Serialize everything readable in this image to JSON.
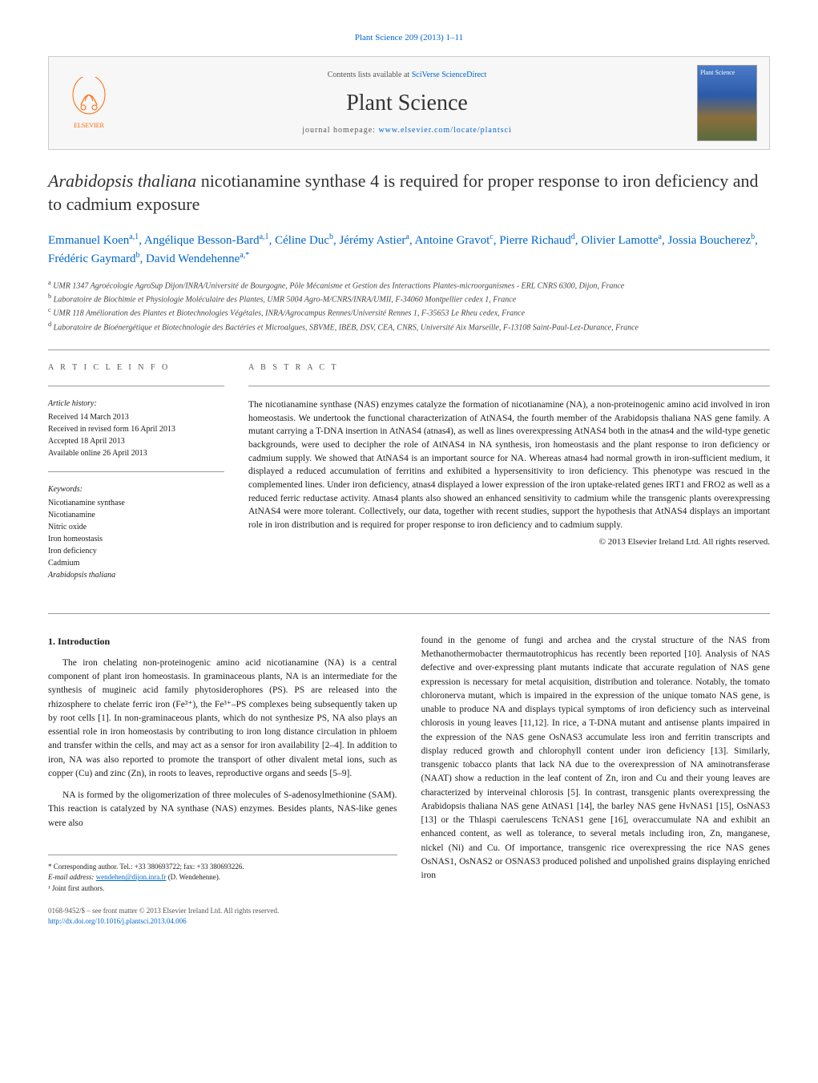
{
  "header": {
    "citation": "Plant Science 209 (2013) 1–11",
    "contents_prefix": "Contents lists available at ",
    "contents_link": "SciVerse ScienceDirect",
    "journal_name": "Plant Science",
    "homepage_prefix": "journal homepage: ",
    "homepage_url": "www.elsevier.com/locate/plantsci",
    "elsevier_label": "ELSEVIER",
    "cover_label": "Plant Science"
  },
  "title": {
    "italic_part": "Arabidopsis thaliana",
    "rest": " nicotianamine synthase 4 is required for proper response to iron deficiency and to cadmium exposure"
  },
  "authors_html": "Emmanuel Koen",
  "authors": [
    {
      "name": "Emmanuel Koen",
      "sup": "a,1"
    },
    {
      "name": "Angélique Besson-Bard",
      "sup": "a,1"
    },
    {
      "name": "Céline Duc",
      "sup": "b"
    },
    {
      "name": "Jérémy Astier",
      "sup": "a"
    },
    {
      "name": "Antoine Gravot",
      "sup": "c"
    },
    {
      "name": "Pierre Richaud",
      "sup": "d"
    },
    {
      "name": "Olivier Lamotte",
      "sup": "a"
    },
    {
      "name": "Jossia Boucherez",
      "sup": "b"
    },
    {
      "name": "Frédéric Gaymard",
      "sup": "b"
    },
    {
      "name": "David Wendehenne",
      "sup": "a,*"
    }
  ],
  "affiliations": [
    {
      "sup": "a",
      "text": "UMR 1347 Agroécologie AgroSup Dijon/INRA/Université de Bourgogne, Pôle Mécanisme et Gestion des Interactions Plantes-microorganismes - ERL CNRS 6300, Dijon, France"
    },
    {
      "sup": "b",
      "text": "Laboratoire de Biochimie et Physiologie Moléculaire des Plantes, UMR 5004 Agro-M/CNRS/INRA/UMII, F-34060 Montpellier cedex 1, France"
    },
    {
      "sup": "c",
      "text": "UMR 118 Amélioration des Plantes et Biotechnologies Végétales, INRA/Agrocampus Rennes/Université Rennes 1, F-35653 Le Rheu cedex, France"
    },
    {
      "sup": "d",
      "text": "Laboratoire de Bioénergétique et Biotechnologie des Bactéries et Microalgues, SBVME, IBEB, DSV, CEA, CNRS, Université Aix Marseille, F-13108 Saint-Paul-Lez-Durance, France"
    }
  ],
  "article_info": {
    "label": "A R T I C L E   I N F O",
    "history_label": "Article history:",
    "history": [
      "Received 14 March 2013",
      "Received in revised form 16 April 2013",
      "Accepted 18 April 2013",
      "Available online 26 April 2013"
    ],
    "keywords_label": "Keywords:",
    "keywords": [
      "Nicotianamine synthase",
      "Nicotianamine",
      "Nitric oxide",
      "Iron homeostasis",
      "Iron deficiency",
      "Cadmium",
      "Arabidopsis thaliana"
    ]
  },
  "abstract": {
    "label": "A B S T R A C T",
    "text": "The nicotianamine synthase (NAS) enzymes catalyze the formation of nicotianamine (NA), a non-proteinogenic amino acid involved in iron homeostasis. We undertook the functional characterization of AtNAS4, the fourth member of the Arabidopsis thaliana NAS gene family. A mutant carrying a T-DNA insertion in AtNAS4 (atnas4), as well as lines overexpressing AtNAS4 both in the atnas4 and the wild-type genetic backgrounds, were used to decipher the role of AtNAS4 in NA synthesis, iron homeostasis and the plant response to iron deficiency or cadmium supply. We showed that AtNAS4 is an important source for NA. Whereas atnas4 had normal growth in iron-sufficient medium, it displayed a reduced accumulation of ferritins and exhibited a hypersensitivity to iron deficiency. This phenotype was rescued in the complemented lines. Under iron deficiency, atnas4 displayed a lower expression of the iron uptake-related genes IRT1 and FRO2 as well as a reduced ferric reductase activity. Atnas4 plants also showed an enhanced sensitivity to cadmium while the transgenic plants overexpressing AtNAS4 were more tolerant. Collectively, our data, together with recent studies, support the hypothesis that AtNAS4 displays an important role in iron distribution and is required for proper response to iron deficiency and to cadmium supply.",
    "copyright": "© 2013 Elsevier Ireland Ltd. All rights reserved."
  },
  "body": {
    "section_number": "1.",
    "section_title": "Introduction",
    "left_p1": "The iron chelating non-proteinogenic amino acid nicotianamine (NA) is a central component of plant iron homeostasis. In graminaceous plants, NA is an intermediate for the synthesis of mugineic acid family phytosiderophores (PS). PS are released into the rhizosphere to chelate ferric iron (Fe³⁺), the Fe³⁺–PS complexes being subsequently taken up by root cells [1]. In non-graminaceous plants, which do not synthesize PS, NA also plays an essential role in iron homeostasis by contributing to iron long distance circulation in phloem and transfer within the cells, and may act as a sensor for iron availability [2–4]. In addition to iron, NA was also reported to promote the transport of other divalent metal ions, such as copper (Cu) and zinc (Zn), in roots to leaves, reproductive organs and seeds [5–9].",
    "left_p2": "NA is formed by the oligomerization of three molecules of S-adenosylmethionine (SAM). This reaction is catalyzed by NA synthase (NAS) enzymes. Besides plants, NAS-like genes were also",
    "right_p1": "found in the genome of fungi and archea and the crystal structure of the NAS from Methanothermobacter thermautotrophicus has recently been reported [10]. Analysis of NAS defective and over-expressing plant mutants indicate that accurate regulation of NAS gene expression is necessary for metal acquisition, distribution and tolerance. Notably, the tomato chloronerva mutant, which is impaired in the expression of the unique tomato NAS gene, is unable to produce NA and displays typical symptoms of iron deficiency such as interveinal chlorosis in young leaves [11,12]. In rice, a T-DNA mutant and antisense plants impaired in the expression of the NAS gene OsNAS3 accumulate less iron and ferritin transcripts and display reduced growth and chlorophyll content under iron deficiency [13]. Similarly, transgenic tobacco plants that lack NA due to the overexpression of NA aminotransferase (NAAT) show a reduction in the leaf content of Zn, iron and Cu and their young leaves are characterized by interveinal chlorosis [5]. In contrast, transgenic plants overexpressing the Arabidopsis thaliana NAS gene AtNAS1 [14], the barley NAS gene HvNAS1 [15], OsNAS3 [13] or the Thlaspi caerulescens TcNAS1 gene [16], overaccumulate NA and exhibit an enhanced content, as well as tolerance, to several metals including iron, Zn, manganese, nickel (Ni) and Cu. Of importance, transgenic rice overexpressing the rice NAS genes OsNAS1, OsNAS2 or OSNAS3 produced polished and unpolished grains displaying enriched iron"
  },
  "footnotes": {
    "corresponding": "* Corresponding author. Tel.: +33 380693722; fax: +33 380693226.",
    "email_label": "E-mail address: ",
    "email": "wendehen@dijon.inra.fr",
    "email_suffix": " (D. Wendehenne).",
    "joint": "¹ Joint first authors."
  },
  "footer": {
    "line1": "0168-9452/$ – see front matter © 2013 Elsevier Ireland Ltd. All rights reserved.",
    "doi": "http://dx.doi.org/10.1016/j.plantsci.2013.04.006"
  },
  "colors": {
    "link": "#0066cc",
    "text": "#1a1a1a",
    "border": "#999999",
    "elsevier_orange": "#ff6600"
  }
}
